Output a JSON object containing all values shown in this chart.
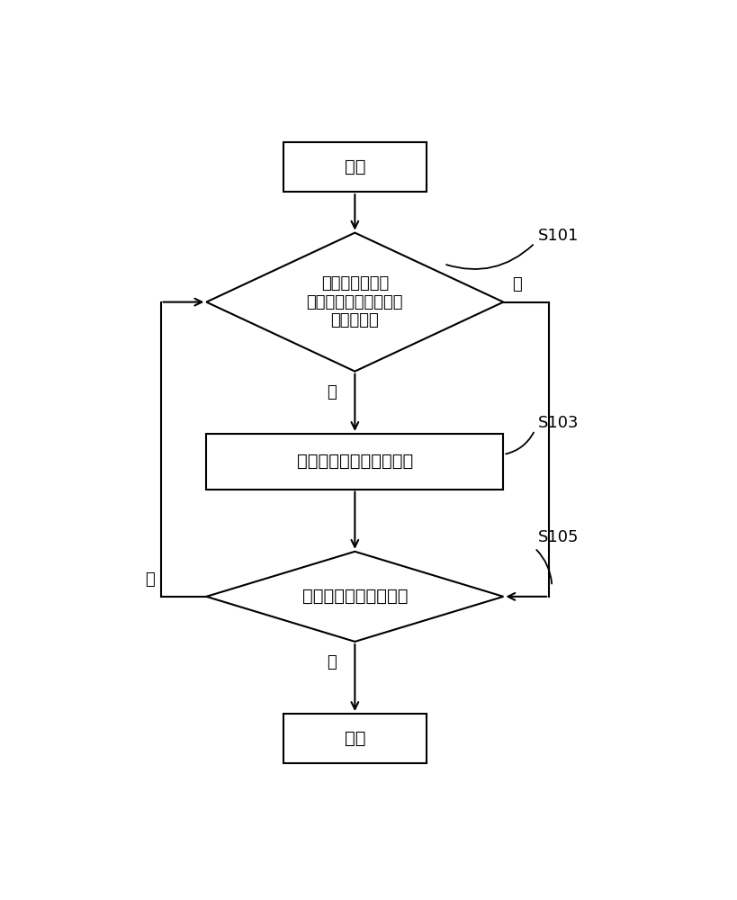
{
  "background_color": "#ffffff",
  "fig_width": 8.19,
  "fig_height": 10.0,
  "dpi": 100,
  "line_color": "#000000",
  "text_color": "#000000",
  "font_size": 14,
  "small_font_size": 13,
  "start_text": "开始",
  "end_text": "结束",
  "diamond1_text": "判断该存储单元\n的其中之一的字节是否\n可正常读写",
  "rect1_text": "写入一标记至该存储单元",
  "diamond2_text": "是否仳有其他存储单元",
  "label_s101": "S101",
  "label_s103": "S103",
  "label_s105": "S105",
  "yes_text": "是",
  "no_text": "否"
}
